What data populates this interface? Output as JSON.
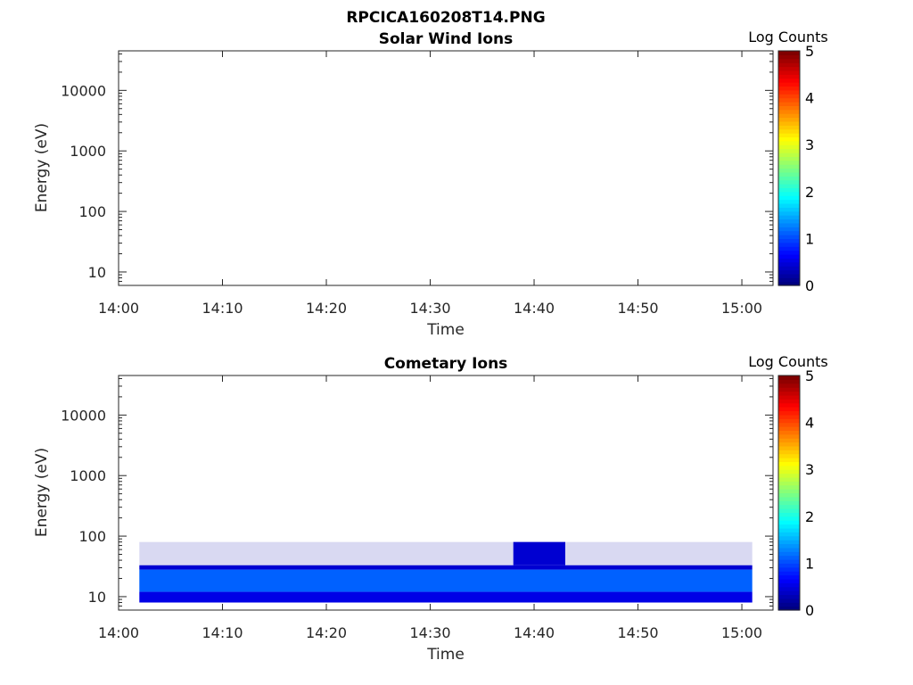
{
  "figure_title": "RPCICA160208T14.PNG",
  "chart_data": [
    {
      "type": "heatmap",
      "title": "Solar Wind Ions",
      "xlabel": "Time",
      "ylabel": "Energy (eV)",
      "x_ticks": [
        "14:00",
        "14:10",
        "14:20",
        "14:30",
        "14:40",
        "14:50",
        "15:00"
      ],
      "xlim_minutes": [
        0,
        63
      ],
      "y_scale": "log",
      "y_ticks": [
        10,
        100,
        1000,
        10000
      ],
      "y_tick_labels": [
        "10",
        "100",
        "1000",
        "10000"
      ],
      "ylim": [
        6,
        45000
      ],
      "colorbar": {
        "label": "Log Counts",
        "ticks": [
          "0",
          "1",
          "2",
          "3",
          "4",
          "5"
        ],
        "range": [
          0,
          5
        ],
        "colormap": "jet"
      },
      "data": "no counts"
    },
    {
      "type": "heatmap",
      "title": "Cometary Ions",
      "xlabel": "Time",
      "ylabel": "Energy (eV)",
      "x_ticks": [
        "14:00",
        "14:10",
        "14:20",
        "14:30",
        "14:40",
        "14:50",
        "15:00"
      ],
      "xlim_minutes": [
        0,
        63
      ],
      "y_scale": "log",
      "y_ticks": [
        10,
        100,
        1000,
        10000
      ],
      "y_tick_labels": [
        "10",
        "100",
        "1000",
        "10000"
      ],
      "ylim": [
        6,
        45000
      ],
      "colorbar": {
        "label": "Log Counts",
        "ticks": [
          "0",
          "1",
          "2",
          "3",
          "4",
          "5"
        ],
        "range": [
          0,
          5
        ],
        "colormap": "jet"
      },
      "data_time_range": [
        "14:02",
        "15:01"
      ],
      "data_bands": [
        {
          "energy_eV": [
            12,
            28
          ],
          "log_counts": 1.1
        },
        {
          "energy_eV": [
            8,
            12
          ],
          "log_counts": 0.5
        },
        {
          "energy_eV": [
            28,
            33
          ],
          "log_counts": 0.4
        },
        {
          "energy_eV": [
            33,
            80
          ],
          "log_counts": 0.2,
          "note_time": "sparse"
        },
        {
          "time": [
            "14:38",
            "14:43"
          ],
          "energy_eV": [
            33,
            80
          ],
          "log_counts": 0.4
        }
      ]
    }
  ]
}
